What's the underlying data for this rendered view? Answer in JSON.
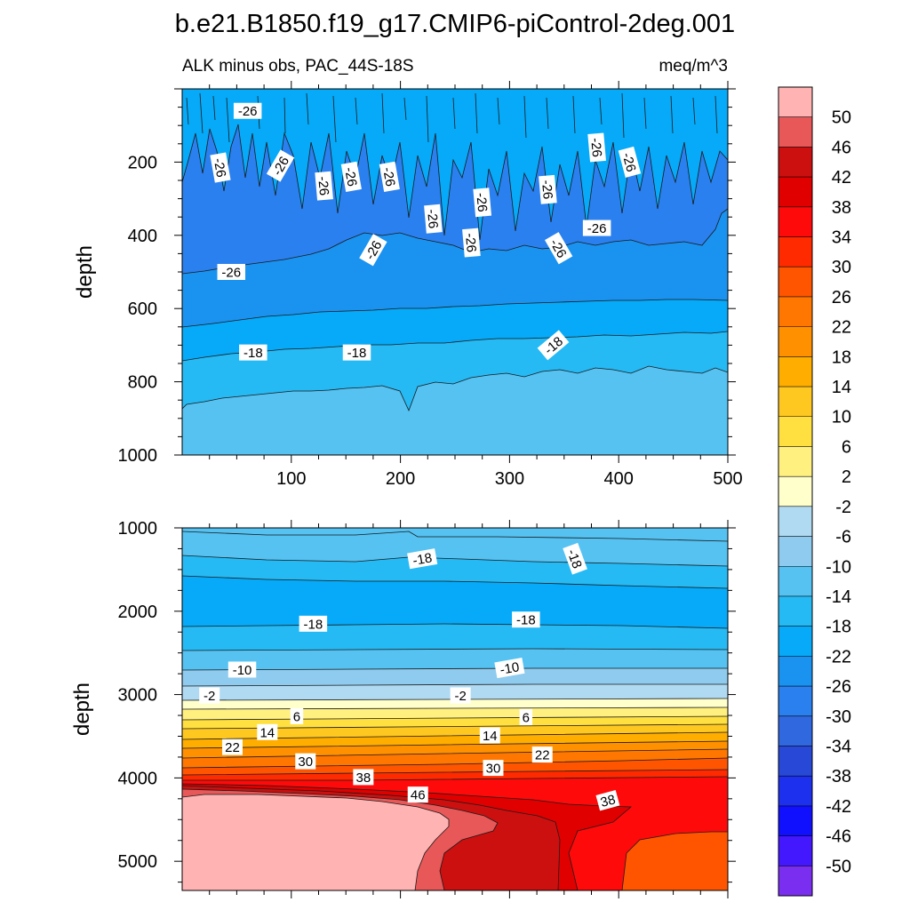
{
  "figure": {
    "title": "b.e21.B1850.f19_g17.CMIP6-piControl-2deg.001",
    "subtitle_left": "ALK minus obs, PAC_44S-18S",
    "subtitle_right": "meq/m^3"
  },
  "chart_data": [
    {
      "type": "contour",
      "panel": "top",
      "xlabel": "",
      "ylabel": "depth",
      "xlim": [
        0,
        500
      ],
      "ylim": [
        1000,
        0
      ],
      "xticks": [
        100,
        200,
        300,
        400,
        500
      ],
      "yticks": [
        200,
        400,
        600,
        800,
        1000
      ],
      "bands": [
        {
          "from": 0,
          "to": 200,
          "value": -22
        },
        {
          "from": 200,
          "to": 500,
          "value": -26
        },
        {
          "from": 500,
          "to": 650,
          "value": -22
        },
        {
          "from": 650,
          "to": 850,
          "value": -18
        },
        {
          "from": 850,
          "to": 1000,
          "value": -14
        }
      ],
      "contour_labels": [
        {
          "text": "-26",
          "x": 60,
          "depth": 60,
          "rot": 0
        },
        {
          "text": "-26",
          "x": 35,
          "depth": 215,
          "rot": 80
        },
        {
          "text": "-26",
          "x": 90,
          "depth": 210,
          "rot": -60
        },
        {
          "text": "-26",
          "x": 130,
          "depth": 265,
          "rot": 85
        },
        {
          "text": "-26",
          "x": 155,
          "depth": 240,
          "rot": 80
        },
        {
          "text": "-26",
          "x": 190,
          "depth": 240,
          "rot": 80
        },
        {
          "text": "-26",
          "x": 230,
          "depth": 355,
          "rot": 85
        },
        {
          "text": "-26",
          "x": 275,
          "depth": 310,
          "rot": 85
        },
        {
          "text": "-26",
          "x": 265,
          "depth": 420,
          "rot": 85
        },
        {
          "text": "-26",
          "x": 175,
          "depth": 440,
          "rot": -60
        },
        {
          "text": "-26",
          "x": 335,
          "depth": 275,
          "rot": 85
        },
        {
          "text": "-26",
          "x": 345,
          "depth": 435,
          "rot": 60
        },
        {
          "text": "-26",
          "x": 380,
          "depth": 160,
          "rot": 85
        },
        {
          "text": "-26",
          "x": 410,
          "depth": 200,
          "rot": 75
        },
        {
          "text": "-26",
          "x": 380,
          "depth": 380,
          "rot": 0
        },
        {
          "text": "-26",
          "x": 45,
          "depth": 500,
          "rot": 0
        },
        {
          "text": "-18",
          "x": 65,
          "depth": 720,
          "rot": 0
        },
        {
          "text": "-18",
          "x": 160,
          "depth": 720,
          "rot": 0
        },
        {
          "text": "-18",
          "x": 340,
          "depth": 700,
          "rot": -40
        }
      ]
    },
    {
      "type": "contour",
      "panel": "bottom",
      "xlabel": "",
      "ylabel": "depth",
      "xlim": [
        0,
        500
      ],
      "ylim": [
        5350,
        1000
      ],
      "xticks": [],
      "yticks": [
        1000,
        2000,
        3000,
        4000,
        5000
      ],
      "contour_labels": [
        {
          "text": "-18",
          "x": 220,
          "depth": 1370,
          "rot": -10
        },
        {
          "text": "-18",
          "x": 360,
          "depth": 1370,
          "rot": 70
        },
        {
          "text": "-18",
          "x": 120,
          "depth": 2150,
          "rot": 0
        },
        {
          "text": "-18",
          "x": 315,
          "depth": 2100,
          "rot": 0
        },
        {
          "text": "-10",
          "x": 55,
          "depth": 2700,
          "rot": 0
        },
        {
          "text": "-10",
          "x": 300,
          "depth": 2680,
          "rot": -10
        },
        {
          "text": "-2",
          "x": 25,
          "depth": 3010,
          "rot": 0
        },
        {
          "text": "-2",
          "x": 255,
          "depth": 3010,
          "rot": 0
        },
        {
          "text": "6",
          "x": 105,
          "depth": 3260,
          "rot": 0
        },
        {
          "text": "6",
          "x": 315,
          "depth": 3270,
          "rot": 0
        },
        {
          "text": "14",
          "x": 78,
          "depth": 3450,
          "rot": 0
        },
        {
          "text": "14",
          "x": 282,
          "depth": 3490,
          "rot": 0
        },
        {
          "text": "22",
          "x": 46,
          "depth": 3630,
          "rot": 0
        },
        {
          "text": "22",
          "x": 330,
          "depth": 3720,
          "rot": 0
        },
        {
          "text": "30",
          "x": 113,
          "depth": 3800,
          "rot": 0
        },
        {
          "text": "30",
          "x": 285,
          "depth": 3880,
          "rot": 0
        },
        {
          "text": "38",
          "x": 166,
          "depth": 3990,
          "rot": 0
        },
        {
          "text": "38",
          "x": 390,
          "depth": 4270,
          "rot": -15
        },
        {
          "text": "46",
          "x": 216,
          "depth": 4200,
          "rot": 0
        }
      ]
    },
    {
      "type": "colorbar",
      "orientation": "vertical",
      "labels": [
        "50",
        "46",
        "42",
        "38",
        "34",
        "30",
        "26",
        "22",
        "18",
        "14",
        "10",
        "6",
        "2",
        "-2",
        "-6",
        "-10",
        "-14",
        "-18",
        "-22",
        "-26",
        "-30",
        "-34",
        "-38",
        "-42",
        "-46",
        "-50"
      ],
      "colors": [
        "#ffb3b3",
        "#e85858",
        "#cc1010",
        "#e00000",
        "#ff0a0a",
        "#ff2a00",
        "#ff5500",
        "#ff7700",
        "#ff9000",
        "#ffae00",
        "#ffc820",
        "#ffe040",
        "#fff080",
        "#ffffcc",
        "#b0daf2",
        "#8ecbee",
        "#55c2f2",
        "#26baf5",
        "#06aaf8",
        "#1a93f0",
        "#2a80ee",
        "#3068e0",
        "#2848d8",
        "#1c30ee",
        "#1010ff",
        "#4418ff",
        "#7a2ef0"
      ]
    }
  ]
}
